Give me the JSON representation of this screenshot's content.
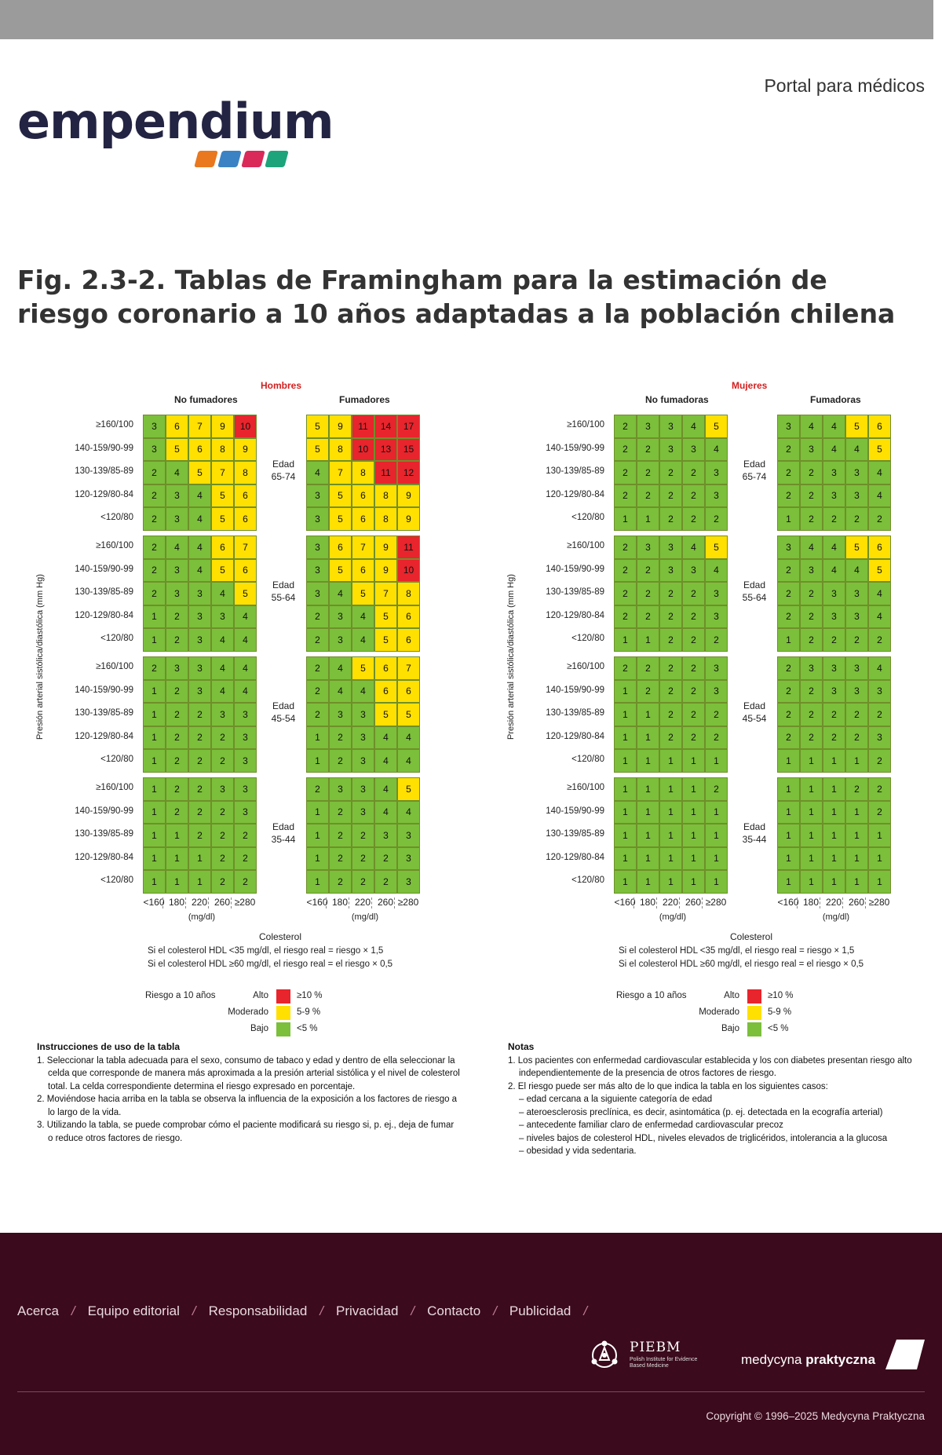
{
  "header": {
    "portal_link": "Portal para médicos",
    "logo_text": "empendium",
    "logo_block_colors": [
      "#e9781f",
      "#3b82c4",
      "#d92a5a",
      "#1ea47a"
    ]
  },
  "figure": {
    "number": "Fig. 2.3-2.",
    "title": "Tablas de Framingham para la estimación de riesgo coronario a 10 años adaptadas a la población chilena"
  },
  "chart_data": [
    {
      "type": "table",
      "sex": "Hombres",
      "groups": [
        "No fumadores",
        "Fumadores"
      ],
      "y_axis_label": "Presión arterial sistólica/diastólica (mm Hg)",
      "bp_rows": [
        "≥160/100",
        "140-159/90-99",
        "130-139/85-89",
        "120-129/80-84",
        "<120/80"
      ],
      "age_bands": [
        {
          "label_line1": "Edad",
          "label_line2": "65-74",
          "non_smokers": [
            [
              3,
              6,
              7,
              9,
              10
            ],
            [
              3,
              5,
              6,
              8,
              9
            ],
            [
              2,
              4,
              5,
              7,
              8
            ],
            [
              2,
              3,
              4,
              5,
              6
            ],
            [
              2,
              3,
              4,
              5,
              6
            ]
          ],
          "smokers": [
            [
              5,
              9,
              11,
              14,
              17
            ],
            [
              5,
              8,
              10,
              13,
              15
            ],
            [
              4,
              7,
              8,
              11,
              12
            ],
            [
              3,
              5,
              6,
              8,
              9
            ],
            [
              3,
              5,
              6,
              8,
              9
            ]
          ]
        },
        {
          "label_line1": "Edad",
          "label_line2": "55-64",
          "non_smokers": [
            [
              2,
              4,
              4,
              6,
              7
            ],
            [
              2,
              3,
              4,
              5,
              6
            ],
            [
              2,
              3,
              3,
              4,
              5
            ],
            [
              1,
              2,
              3,
              3,
              4
            ],
            [
              1,
              2,
              3,
              4,
              4
            ]
          ],
          "smokers": [
            [
              3,
              6,
              7,
              9,
              11
            ],
            [
              3,
              5,
              6,
              9,
              10
            ],
            [
              3,
              4,
              5,
              7,
              8
            ],
            [
              2,
              3,
              4,
              5,
              6
            ],
            [
              2,
              3,
              4,
              5,
              6
            ]
          ]
        },
        {
          "label_line1": "Edad",
          "label_line2": "45-54",
          "non_smokers": [
            [
              2,
              3,
              3,
              4,
              4
            ],
            [
              1,
              2,
              3,
              4,
              4
            ],
            [
              1,
              2,
              2,
              3,
              3
            ],
            [
              1,
              2,
              2,
              2,
              3
            ],
            [
              1,
              2,
              2,
              2,
              3
            ]
          ],
          "smokers": [
            [
              2,
              4,
              5,
              6,
              7
            ],
            [
              2,
              4,
              4,
              6,
              6
            ],
            [
              2,
              3,
              3,
              5,
              5
            ],
            [
              1,
              2,
              3,
              4,
              4
            ],
            [
              1,
              2,
              3,
              4,
              4
            ]
          ]
        },
        {
          "label_line1": "Edad",
          "label_line2": "35-44",
          "non_smokers": [
            [
              1,
              2,
              2,
              3,
              3
            ],
            [
              1,
              2,
              2,
              2,
              3
            ],
            [
              1,
              1,
              2,
              2,
              2
            ],
            [
              1,
              1,
              1,
              2,
              2
            ],
            [
              1,
              1,
              1,
              2,
              2
            ]
          ],
          "smokers": [
            [
              2,
              3,
              3,
              4,
              5
            ],
            [
              1,
              2,
              3,
              4,
              4
            ],
            [
              1,
              2,
              2,
              3,
              3
            ],
            [
              1,
              2,
              2,
              2,
              3
            ],
            [
              1,
              2,
              2,
              2,
              3
            ]
          ]
        }
      ],
      "cholesterol_ticks": [
        "<160",
        "180",
        "220",
        "260",
        "≥280"
      ],
      "cholesterol_unit": "(mg/dl)",
      "x_axis_title": "Colesterol",
      "hdl_notes": [
        "Si el colesterol HDL <35 mg/dl, el riesgo real = riesgo × 1,5",
        "Si el colesterol HDL ≥60 mg/dl, el riesgo real = el riesgo × 0,5"
      ],
      "legend": {
        "title": "Riesgo a 10 años",
        "items": [
          {
            "label": "Alto",
            "value": "≥10 %",
            "color": "#e8242c"
          },
          {
            "label": "Moderado",
            "value": "5-9 %",
            "color": "#ffe000"
          },
          {
            "label": "Bajo",
            "value": "<5 %",
            "color": "#7bbf3a"
          }
        ]
      }
    },
    {
      "type": "table",
      "sex": "Mujeres",
      "groups": [
        "No fumadoras",
        "Fumadoras"
      ],
      "y_axis_label": "Presión arterial sistólica/diastólica (mm Hg)",
      "bp_rows": [
        "≥160/100",
        "140-159/90-99",
        "130-139/85-89",
        "120-129/80-84",
        "<120/80"
      ],
      "age_bands": [
        {
          "label_line1": "Edad",
          "label_line2": "65-74",
          "non_smokers": [
            [
              2,
              3,
              3,
              4,
              5
            ],
            [
              2,
              2,
              3,
              3,
              4
            ],
            [
              2,
              2,
              2,
              2,
              3
            ],
            [
              2,
              2,
              2,
              2,
              3
            ],
            [
              1,
              1,
              2,
              2,
              2
            ]
          ],
          "smokers": [
            [
              3,
              4,
              4,
              5,
              6
            ],
            [
              2,
              3,
              4,
              4,
              5
            ],
            [
              2,
              2,
              3,
              3,
              4
            ],
            [
              2,
              2,
              3,
              3,
              4
            ],
            [
              1,
              2,
              2,
              2,
              2
            ]
          ]
        },
        {
          "label_line1": "Edad",
          "label_line2": "55-64",
          "non_smokers": [
            [
              2,
              3,
              3,
              4,
              5
            ],
            [
              2,
              2,
              3,
              3,
              4
            ],
            [
              2,
              2,
              2,
              2,
              3
            ],
            [
              2,
              2,
              2,
              2,
              3
            ],
            [
              1,
              1,
              2,
              2,
              2
            ]
          ],
          "smokers": [
            [
              3,
              4,
              4,
              5,
              6
            ],
            [
              2,
              3,
              4,
              4,
              5
            ],
            [
              2,
              2,
              3,
              3,
              4
            ],
            [
              2,
              2,
              3,
              3,
              4
            ],
            [
              1,
              2,
              2,
              2,
              2
            ]
          ]
        },
        {
          "label_line1": "Edad",
          "label_line2": "45-54",
          "non_smokers": [
            [
              2,
              2,
              2,
              2,
              3
            ],
            [
              1,
              2,
              2,
              2,
              3
            ],
            [
              1,
              1,
              2,
              2,
              2
            ],
            [
              1,
              1,
              2,
              2,
              2
            ],
            [
              1,
              1,
              1,
              1,
              1
            ]
          ],
          "smokers": [
            [
              2,
              3,
              3,
              3,
              4
            ],
            [
              2,
              2,
              3,
              3,
              3
            ],
            [
              2,
              2,
              2,
              2,
              2
            ],
            [
              2,
              2,
              2,
              2,
              3
            ],
            [
              1,
              1,
              1,
              1,
              2
            ]
          ]
        },
        {
          "label_line1": "Edad",
          "label_line2": "35-44",
          "non_smokers": [
            [
              1,
              1,
              1,
              1,
              2
            ],
            [
              1,
              1,
              1,
              1,
              1
            ],
            [
              1,
              1,
              1,
              1,
              1
            ],
            [
              1,
              1,
              1,
              1,
              1
            ],
            [
              1,
              1,
              1,
              1,
              1
            ]
          ],
          "smokers": [
            [
              1,
              1,
              1,
              2,
              2
            ],
            [
              1,
              1,
              1,
              1,
              2
            ],
            [
              1,
              1,
              1,
              1,
              1
            ],
            [
              1,
              1,
              1,
              1,
              1
            ],
            [
              1,
              1,
              1,
              1,
              1
            ]
          ]
        }
      ],
      "cholesterol_ticks": [
        "<160",
        "180",
        "220",
        "260",
        "≥280"
      ],
      "cholesterol_unit": "(mg/dl)",
      "x_axis_title": "Colesterol",
      "hdl_notes": [
        "Si el colesterol HDL <35 mg/dl, el riesgo real = riesgo × 1,5",
        "Si el colesterol HDL ≥60 mg/dl, el riesgo real = el riesgo × 0,5"
      ],
      "legend": {
        "title": "Riesgo a 10 años",
        "items": [
          {
            "label": "Alto",
            "value": "≥10 %",
            "color": "#e8242c"
          },
          {
            "label": "Moderado",
            "value": "5-9 %",
            "color": "#ffe000"
          },
          {
            "label": "Bajo",
            "value": "<5 %",
            "color": "#7bbf3a"
          }
        ]
      }
    }
  ],
  "instructions": {
    "title": "Instrucciones de uso de la tabla",
    "items": [
      "1. Seleccionar la tabla adecuada para el sexo, consumo de tabaco y edad y dentro de ella seleccionar la celda que corresponde de manera más aproximada a la presión arterial sistólica y el nivel de colesterol total. La celda correspondiente determina el riesgo expresado en porcentaje.",
      "2. Moviéndose hacia arriba en la tabla se observa la influencia de la exposición a los factores de riesgo a lo largo de la vida.",
      "3. Utilizando la tabla, se puede comprobar cómo el paciente modificará su riesgo si, p. ej., deja de fumar o reduce otros factores de riesgo."
    ]
  },
  "notes": {
    "title": "Notas",
    "item1": "1. Los pacientes con enfermedad cardiovascular establecida y los con diabetes presentan riesgo alto independientemente de la presencia de otros factores de riesgo.",
    "item2": "2. El riesgo puede ser más alto de lo que indica la tabla en los siguientes casos:",
    "sub_items": [
      "– edad cercana a la siguiente categoría de edad",
      "– ateroesclerosis preclínica, es decir, asintomática (p. ej. detectada en la ecografía arterial)",
      "– antecedente familiar claro de enfermedad cardiovascular precoz",
      "– niveles bajos de colesterol HDL, niveles elevados de triglicéridos, intolerancia a la glucosa",
      "– obesidad y vida sedentaria."
    ]
  },
  "footer": {
    "nav": [
      "Acerca",
      "Equipo editorial",
      "Responsabilidad",
      "Privacidad",
      "Contacto",
      "Publicidad"
    ],
    "separator": "/",
    "piebm_name": "PIEBM",
    "piebm_sub": "Polish Institute for Evidence Based Medicine",
    "mp_light": "medycyna ",
    "mp_bold": "praktyczna",
    "copyright": "Copyright © 1996–2025 Medycyna Praktyczna"
  }
}
